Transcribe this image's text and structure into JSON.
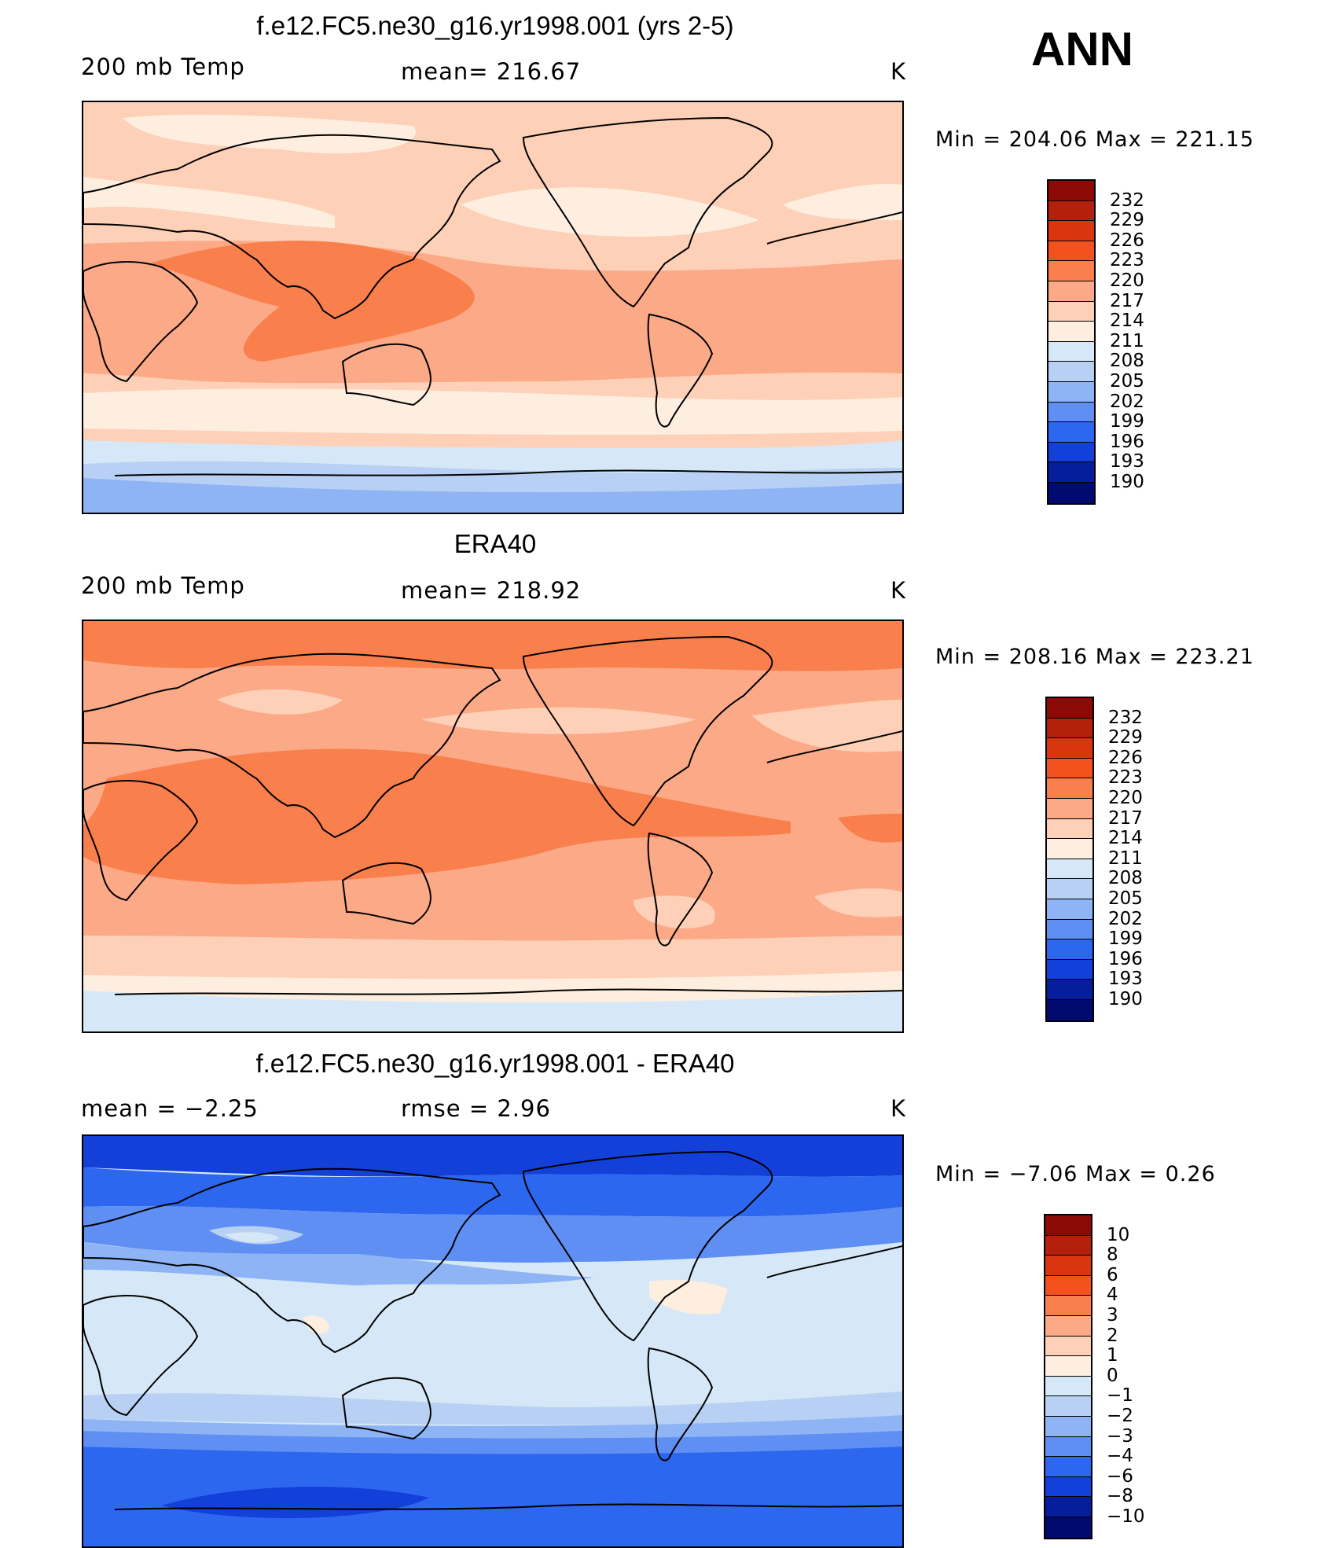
{
  "season": "ANN",
  "panels": [
    {
      "title": "f.e12.FC5.ne30_g16.yr1998.001 (yrs 2-5)",
      "left_label": "200 mb Temp",
      "center_label": "mean=  216.67",
      "units": "K",
      "minmax": "Min  =  204.06  Max  =  221.15"
    },
    {
      "title": "ERA40",
      "left_label": "200 mb Temp",
      "center_label": "mean=  218.92",
      "units": "K",
      "minmax": "Min  =  208.16  Max  =  223.21"
    },
    {
      "title": "f.e12.FC5.ne30_g16.yr1998.001 - ERA40",
      "left_label": "mean  =     −2.25",
      "center_label": "rmse  =     2.96",
      "units": "K",
      "minmax": "Min  =    −7.06  Max  =      0.26"
    }
  ],
  "colorbars": {
    "temperature": {
      "levels": [
        "232",
        "229",
        "226",
        "223",
        "220",
        "217",
        "214",
        "211",
        "208",
        "205",
        "202",
        "199",
        "196",
        "193",
        "190"
      ],
      "colors": [
        "#8b0a05",
        "#b3200c",
        "#d9360f",
        "#f3521f",
        "#f97f4c",
        "#fba987",
        "#fdd0b7",
        "#fdeedf",
        "#d6e8f7",
        "#b8d0f3",
        "#8fb4f5",
        "#5f8ff2",
        "#2d66ef",
        "#1240d8",
        "#071e9c",
        "#010a6e"
      ]
    },
    "difference": {
      "levels": [
        "10",
        "8",
        "6",
        "4",
        "3",
        "2",
        "1",
        "0",
        "−1",
        "−2",
        "−3",
        "−4",
        "−6",
        "−8",
        "−10"
      ],
      "colors": [
        "#8b0a05",
        "#b3200c",
        "#d9360f",
        "#f3521f",
        "#f97f4c",
        "#fba987",
        "#fdd0b7",
        "#fdeedf",
        "#d6e8f7",
        "#b8d0f3",
        "#8fb4f5",
        "#5f8ff2",
        "#2d66ef",
        "#1240d8",
        "#071e9c",
        "#010a6e"
      ]
    }
  },
  "map_colors": {
    "model": {
      "bands": [
        "#fdd0b7",
        "#fdeedf",
        "#fdd0b7",
        "#fba987",
        "#f97f4c",
        "#fba987",
        "#fdd0b7",
        "#fdeedf",
        "#d6e8f7",
        "#b8d0f3",
        "#8fb4f5"
      ]
    },
    "era40": {
      "bands": [
        "#f97f4c",
        "#fba987",
        "#fdd0b7",
        "#fba987",
        "#f97f4c",
        "#fba987",
        "#fdd0b7",
        "#fdeedf",
        "#d6e8f7"
      ]
    },
    "diff": {
      "bands": [
        "#2d66ef",
        "#5f8ff2",
        "#8fb4f5",
        "#b8d0f3",
        "#d6e8f7",
        "#b8d0f3",
        "#8fb4f5",
        "#5f8ff2",
        "#2d66ef"
      ]
    }
  }
}
